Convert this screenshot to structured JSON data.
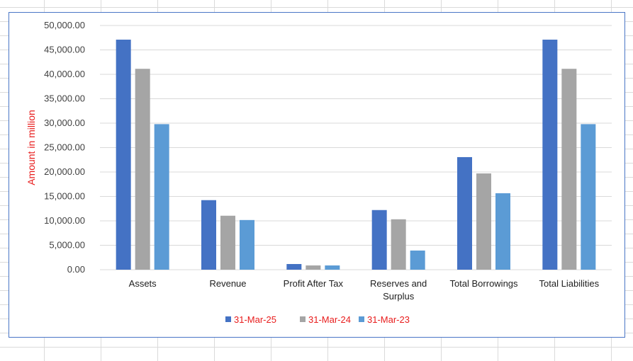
{
  "chart_data": {
    "type": "bar",
    "title": "",
    "xlabel": "",
    "ylabel": "Amount in million",
    "ylim": [
      0,
      50000
    ],
    "yticks": [
      "0.00",
      "5,000.00",
      "10,000.00",
      "15,000.00",
      "20,000.00",
      "25,000.00",
      "30,000.00",
      "35,000.00",
      "40,000.00",
      "45,000.00",
      "50,000.00"
    ],
    "grid": true,
    "legend_position": "bottom",
    "categories": [
      "Assets",
      "Revenue",
      "Profit After Tax",
      "Reserves and Surplus",
      "Total Borrowings",
      "Total Liabilities"
    ],
    "series": [
      {
        "name": "31-Mar-25",
        "color": "#4472c4",
        "values": [
          47100,
          14240,
          1160,
          12210,
          23050,
          47100
        ]
      },
      {
        "name": "31-Mar-24",
        "color": "#a5a5a5",
        "values": [
          41130,
          11050,
          870,
          10320,
          19710,
          41130
        ]
      },
      {
        "name": "31-Mar-23",
        "color": "#5b9bd5",
        "values": [
          29800,
          10170,
          870,
          3920,
          15650,
          29800
        ]
      }
    ]
  }
}
